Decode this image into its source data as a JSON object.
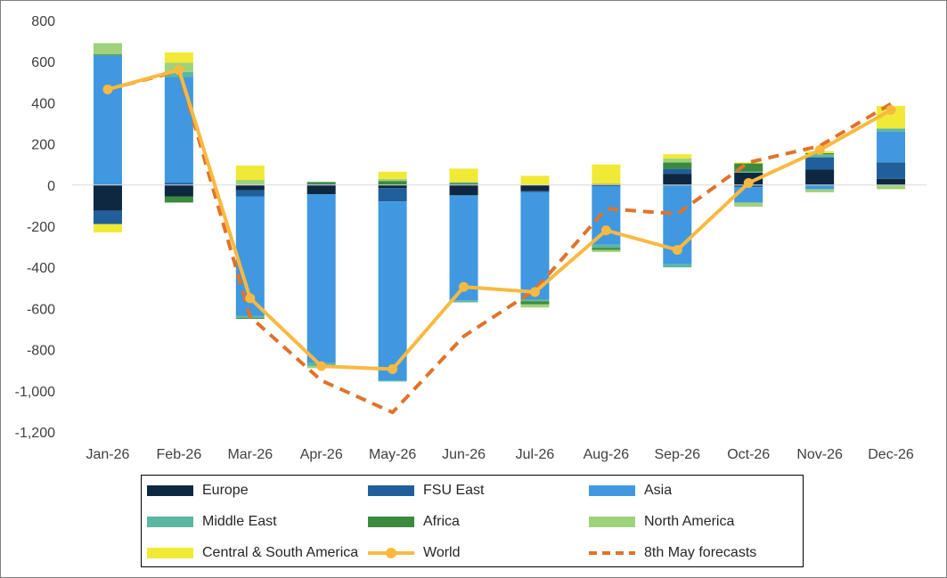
{
  "chart_data": {
    "type": "bar",
    "stacked": true,
    "categories": [
      "Jan-26",
      "Feb-26",
      "Mar-26",
      "Apr-26",
      "May-26",
      "Jun-26",
      "Jul-26",
      "Aug-26",
      "Sep-26",
      "Oct-26",
      "Nov-26",
      "Dec-26"
    ],
    "ylim": [
      -1200,
      800
    ],
    "yticks": [
      800,
      600,
      400,
      200,
      0,
      -200,
      -400,
      -600,
      -800,
      -1000,
      -1200
    ],
    "ytick_labels": [
      "800",
      "600",
      "400",
      "200",
      "0",
      "-200",
      "-400",
      "-600",
      "-800",
      "-1,000",
      "-1,200"
    ],
    "grid": false,
    "legend_position": "bottom",
    "series": [
      {
        "name": "Europe",
        "color": "#0e2841",
        "values": [
          -125,
          -55,
          -25,
          -45,
          -15,
          -50,
          -30,
          -5,
          55,
          60,
          75,
          30
        ]
      },
      {
        "name": "FSU East",
        "color": "#215f9a",
        "values": [
          -65,
          10,
          -30,
          5,
          -65,
          5,
          -5,
          5,
          25,
          -10,
          60,
          80
        ]
      },
      {
        "name": "Asia",
        "color": "#4098e0",
        "values": [
          630,
          515,
          -580,
          -820,
          -870,
          -510,
          -520,
          -285,
          -385,
          -75,
          -20,
          150
        ]
      },
      {
        "name": "Middle East",
        "color": "#5bb7a1",
        "values": [
          0,
          25,
          -10,
          -15,
          -5,
          -10,
          -10,
          -15,
          -15,
          5,
          15,
          15
        ]
      },
      {
        "name": "Africa",
        "color": "#3b8a3e",
        "values": [
          5,
          -30,
          -5,
          10,
          20,
          5,
          -15,
          -10,
          30,
          40,
          5,
          0
        ]
      },
      {
        "name": "North America",
        "color": "#9fd27a",
        "values": [
          55,
          45,
          25,
          -10,
          10,
          5,
          -15,
          -10,
          20,
          -20,
          -15,
          -20
        ]
      },
      {
        "name": "Central & South America",
        "color": "#f0ea36",
        "values": [
          -40,
          50,
          70,
          0,
          35,
          65,
          45,
          95,
          20,
          5,
          10,
          110
        ]
      }
    ],
    "lines": [
      {
        "name": "World",
        "color": "#f9b941",
        "style": "solid",
        "marker": "circle",
        "values": [
          465,
          560,
          -550,
          -880,
          -895,
          -495,
          -520,
          -220,
          -315,
          10,
          170,
          365
        ]
      },
      {
        "name": "8th May forecasts",
        "color": "#e0732a",
        "style": "dashed",
        "marker": "none",
        "values": [
          465,
          555,
          -640,
          -950,
          -1105,
          -735,
          -510,
          -115,
          -140,
          110,
          190,
          395
        ]
      }
    ]
  },
  "legend": {
    "items": [
      {
        "label": "Europe",
        "kind": "swatch",
        "color": "#0e2841"
      },
      {
        "label": "FSU East",
        "kind": "swatch",
        "color": "#215f9a"
      },
      {
        "label": "Asia",
        "kind": "swatch",
        "color": "#4098e0"
      },
      {
        "label": "Middle East",
        "kind": "swatch",
        "color": "#5bb7a1"
      },
      {
        "label": "Africa",
        "kind": "swatch",
        "color": "#3b8a3e"
      },
      {
        "label": "North America",
        "kind": "swatch",
        "color": "#9fd27a"
      },
      {
        "label": "Central & South America",
        "kind": "swatch",
        "color": "#f0ea36"
      },
      {
        "label": "World",
        "kind": "line-marker",
        "color": "#f9b941"
      },
      {
        "label": "8th May forecasts",
        "kind": "dashed-line",
        "color": "#e0732a"
      }
    ]
  }
}
